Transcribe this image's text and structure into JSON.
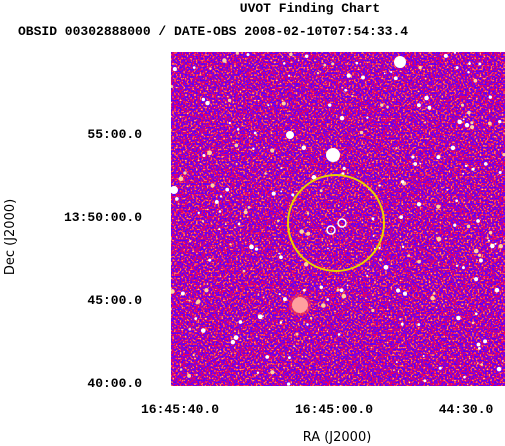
{
  "header": {
    "title": "UVOT Finding Chart",
    "subtitle": "OBSID 00302888000 / DATE-OBS 2008-02-10T07:54:33.4"
  },
  "x_axis": {
    "label": "RA (J2000)",
    "ticks": [
      "16:45:40.0",
      "16:45:00.0",
      "44:30.0"
    ]
  },
  "y_axis": {
    "label": "Dec (J2000)",
    "ticks": [
      "55:00.0",
      "13:50:00.0",
      "45:00.0",
      "40:00.0"
    ]
  }
}
